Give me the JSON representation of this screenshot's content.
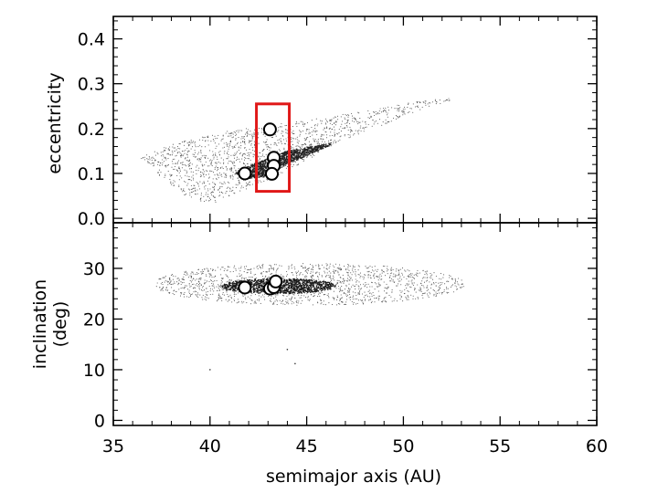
{
  "chart_data": {
    "type": "scatter",
    "xlabel": "semimajor axis (AU)",
    "xlim": [
      35,
      60
    ],
    "x_ticks": [
      "35",
      "40",
      "45",
      "50",
      "55",
      "60"
    ],
    "panels": [
      {
        "id": "top",
        "ylabel": "eccentricity",
        "ylim": [
          -0.01,
          0.45
        ],
        "y_ticks": [
          "0.0",
          "0.1",
          "0.2",
          "0.3",
          "0.4"
        ],
        "highlight_box": {
          "x": [
            42.4,
            44.1
          ],
          "y": [
            0.06,
            0.255
          ],
          "color": "#e01818"
        },
        "outer_region": {
          "x": [
            36.3,
            52.9
          ],
          "y": [
            0.03,
            0.27
          ]
        },
        "inner_region": {
          "x": [
            41.3,
            46.5
          ],
          "y": [
            0.09,
            0.17
          ]
        },
        "objects": [
          {
            "x": 41.8,
            "y": 0.1
          },
          {
            "x": 43.1,
            "y": 0.198
          },
          {
            "x": 43.3,
            "y": 0.135
          },
          {
            "x": 43.3,
            "y": 0.117
          },
          {
            "x": 43.2,
            "y": 0.099
          }
        ]
      },
      {
        "id": "bottom",
        "ylabel": "inclination (deg)",
        "ylim": [
          -1,
          39
        ],
        "y_ticks": [
          "0",
          "10",
          "20",
          "30"
        ],
        "outer_region": {
          "x": [
            37.0,
            53.2
          ],
          "y": [
            22.7,
            31.0
          ]
        },
        "inner_region": {
          "x": [
            40.6,
            46.5
          ],
          "y": [
            25.0,
            28.0
          ]
        },
        "objects": [
          {
            "x": 41.8,
            "y": 26.2
          },
          {
            "x": 43.1,
            "y": 26.0
          },
          {
            "x": 43.3,
            "y": 26.3
          },
          {
            "x": 43.4,
            "y": 27.4
          }
        ]
      }
    ]
  }
}
